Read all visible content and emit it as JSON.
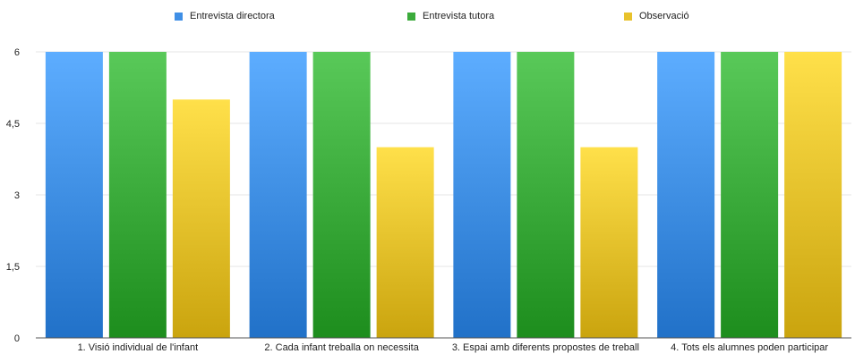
{
  "chart_data": {
    "type": "bar",
    "title": "",
    "xlabel": "",
    "ylabel": "",
    "ylim": [
      0,
      6
    ],
    "yticks": [
      "0",
      "1,5",
      "3",
      "4,5",
      "6"
    ],
    "ytick_values": [
      0,
      1.5,
      3,
      4.5,
      6
    ],
    "grid": true,
    "legend_position": "top",
    "categories": [
      "1. Visió individual de l'infant",
      "2. Cada infant treballa on necessita",
      "3. Espai amb diferents propostes de treball",
      "4. Tots els alumnes poden participar"
    ],
    "series": [
      {
        "name": "Entrevista directora",
        "color": "#3f8fe6",
        "values": [
          6,
          6,
          6,
          6
        ]
      },
      {
        "name": "Entrevista tutora",
        "color": "#3bab3b",
        "values": [
          6,
          6,
          6,
          6
        ]
      },
      {
        "name": "Observació",
        "color": "#e8c22c",
        "values": [
          5,
          4,
          4,
          6
        ]
      }
    ]
  }
}
